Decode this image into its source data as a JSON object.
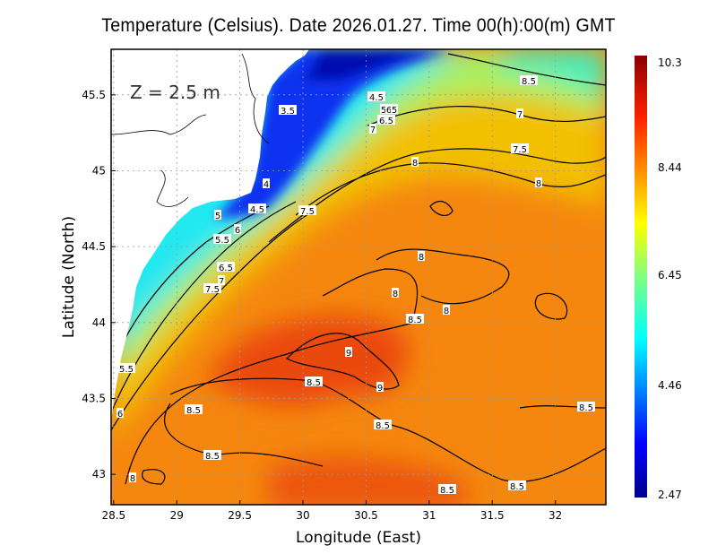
{
  "chart_data": {
    "type": "heatmap",
    "title": "Temperature (Celsius). Date 2026.01.27. Time 00(h):00(m) GMT",
    "xlabel": "Longitude (East)",
    "ylabel": "Latitude (North)",
    "x_ticks": [
      "28.5",
      "29",
      "29.5",
      "30",
      "30.5",
      "31",
      "31.5",
      "32"
    ],
    "y_ticks": [
      "45.5",
      "45",
      "44.5",
      "44",
      "43.5",
      "43"
    ],
    "xlim": [
      28.48,
      32.4
    ],
    "ylim": [
      42.8,
      45.8
    ],
    "grid": true,
    "annotation": "Z = 2.5 m",
    "colorbar": {
      "min": 2.47,
      "max": 10.3,
      "tick_labels": [
        "10.3",
        "8.44",
        "6.45",
        "4.46",
        "2.47"
      ],
      "colormap": "jet"
    },
    "contour_levels": [
      3.5,
      4,
      4.5,
      5,
      5.5,
      6,
      6.5,
      7,
      7.5,
      8,
      8.5,
      9
    ],
    "contour_labels": [
      "8.5",
      "4.5",
      "5",
      "6",
      "5",
      "3.5",
      "7",
      "6.5",
      "7",
      "7.5",
      "8",
      "8",
      "4",
      "4.5",
      "7.5",
      "5",
      "6",
      "5.5",
      "8",
      "6.5",
      "7",
      "7.5",
      "8",
      "8",
      "8.5",
      "9",
      "5.5",
      "9",
      "8.5",
      "8.5",
      "8.5",
      "6",
      "8.5",
      "8.5",
      "8",
      "8.5",
      "8.5"
    ],
    "colors": {
      "land": "#ffffff",
      "warm": "#f5870f",
      "hot": "#e8400a",
      "mid": "#f0c000",
      "cool": "#00e8f0",
      "cold": "#0010e0"
    }
  }
}
